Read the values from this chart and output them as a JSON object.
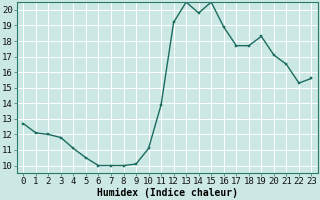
{
  "x": [
    0,
    1,
    2,
    3,
    4,
    5,
    6,
    7,
    8,
    9,
    10,
    11,
    12,
    13,
    14,
    15,
    16,
    17,
    18,
    19,
    20,
    21,
    22,
    23
  ],
  "y": [
    12.7,
    12.1,
    12.0,
    11.8,
    11.1,
    10.5,
    10.0,
    10.0,
    10.0,
    10.1,
    11.1,
    13.9,
    19.2,
    20.5,
    19.8,
    20.5,
    18.9,
    17.7,
    17.7,
    18.3,
    17.1,
    16.5,
    15.3,
    15.6
  ],
  "bg_color": "#cce8e4",
  "line_color": "#1a6b60",
  "marker_color": "#1a6b60",
  "grid_color": "#ffffff",
  "xlabel": "Humidex (Indice chaleur)",
  "xlim": [
    -0.5,
    23.5
  ],
  "ylim": [
    9.5,
    20.5
  ],
  "yticks": [
    10,
    11,
    12,
    13,
    14,
    15,
    16,
    17,
    18,
    19,
    20
  ],
  "xticks": [
    0,
    1,
    2,
    3,
    4,
    5,
    6,
    7,
    8,
    9,
    10,
    11,
    12,
    13,
    14,
    15,
    16,
    17,
    18,
    19,
    20,
    21,
    22,
    23
  ],
  "xlabel_fontsize": 7,
  "tick_fontsize": 6.5
}
